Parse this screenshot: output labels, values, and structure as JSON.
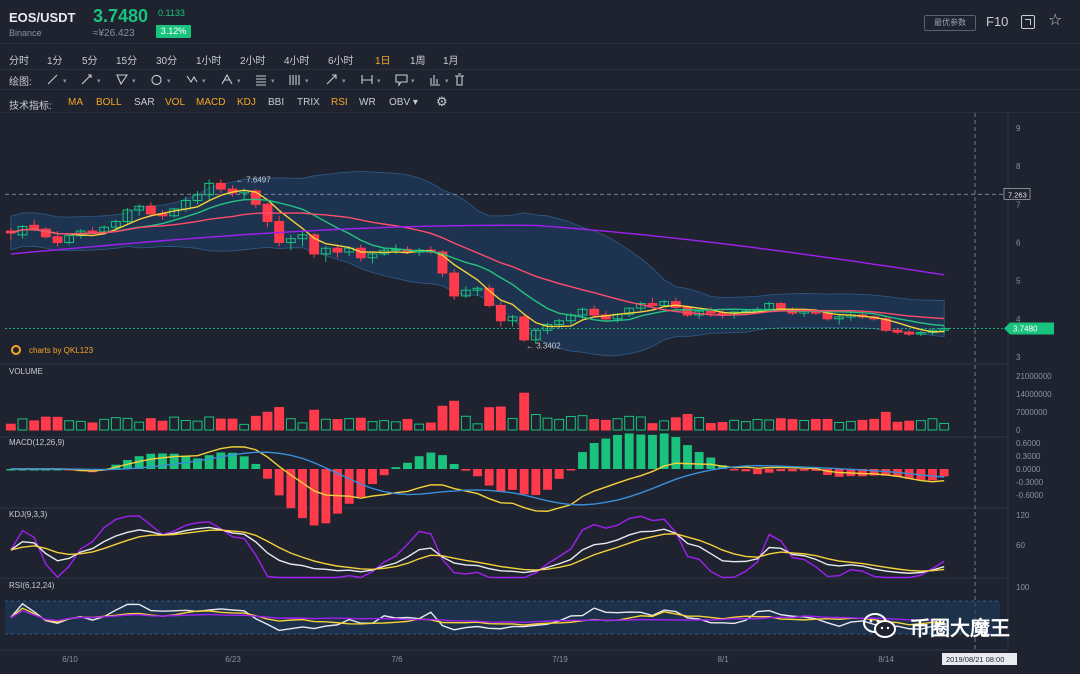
{
  "header": {
    "symbol": "EOS/USDT",
    "exchange": "Binance",
    "price": "3.7480",
    "cny_price": "≈¥26.423",
    "change": "0.1133",
    "change_pct": "3.12%",
    "preferences_label": "最优参数",
    "f10_label": "F10",
    "fullscreen_icon": "fullscreen-icon",
    "star_icon": "star-icon"
  },
  "timeframes": [
    {
      "label": "分时",
      "active": false
    },
    {
      "label": "1分",
      "active": false
    },
    {
      "label": "5分",
      "active": false
    },
    {
      "label": "15分",
      "active": false
    },
    {
      "label": "30分",
      "active": false
    },
    {
      "label": "1小时",
      "active": false
    },
    {
      "label": "2小时",
      "active": false
    },
    {
      "label": "4小时",
      "active": false
    },
    {
      "label": "6小时",
      "active": false
    },
    {
      "label": "1日",
      "active": true
    },
    {
      "label": "1周",
      "active": false
    },
    {
      "label": "1月",
      "active": false
    }
  ],
  "drawing": {
    "label": "绘图:",
    "tools": [
      "line-tool-icon",
      "ray-tool-icon",
      "triangle-tool-icon",
      "circle-tool-icon",
      "wave-tool-icon",
      "pattern-tool-icon",
      "horizontal-lines-icon",
      "vertical-lines-icon",
      "arrow-tool-icon",
      "measure-tool-icon",
      "comment-tool-icon",
      "bar-chart-icon",
      "trash-icon"
    ]
  },
  "indicators": {
    "label": "技术指标:",
    "items": [
      {
        "label": "MA",
        "color": "#f5a623"
      },
      {
        "label": "BOLL",
        "color": "#f5a623"
      },
      {
        "label": "SAR",
        "color": "#c8ccd6"
      },
      {
        "label": "VOL",
        "color": "#f5a623"
      },
      {
        "label": "MACD",
        "color": "#f5a623"
      },
      {
        "label": "KDJ",
        "color": "#f5a623"
      },
      {
        "label": "BBI",
        "color": "#c8ccd6"
      },
      {
        "label": "TRIX",
        "color": "#c8ccd6"
      },
      {
        "label": "RSI",
        "color": "#f5a623"
      },
      {
        "label": "WR",
        "color": "#c8ccd6"
      },
      {
        "label": "OBV",
        "color": "#c8ccd6"
      }
    ],
    "settings_icon": "gear-icon"
  },
  "chart_data": {
    "type": "candlestick",
    "price_axis": {
      "ticks": [
        "9",
        "8",
        "7",
        "6",
        "5",
        "4",
        "3"
      ],
      "range": [
        3,
        9
      ]
    },
    "current_price_label": "3.7480",
    "crosshair_price_label": "7.263",
    "high_annotation": "7.6497",
    "low_annotation": "3.3402",
    "branding": "charts by QKL123",
    "x_ticks": [
      "6/10",
      "6/23",
      "7/6",
      "7/19",
      "8/1",
      "8/14"
    ],
    "crosshair_date": "2019/08/21 08:00",
    "candles": [
      [
        6.3,
        6.38,
        6.05,
        6.25
      ],
      [
        6.2,
        6.45,
        6.1,
        6.42
      ],
      [
        6.45,
        6.6,
        6.3,
        6.35
      ],
      [
        6.35,
        6.4,
        6.1,
        6.15
      ],
      [
        6.15,
        6.3,
        5.9,
        6.0
      ],
      [
        6.0,
        6.2,
        5.95,
        6.18
      ],
      [
        6.18,
        6.35,
        6.1,
        6.3
      ],
      [
        6.3,
        6.4,
        6.2,
        6.28
      ],
      [
        6.28,
        6.45,
        6.2,
        6.4
      ],
      [
        6.4,
        6.6,
        6.35,
        6.55
      ],
      [
        6.55,
        6.9,
        6.5,
        6.85
      ],
      [
        6.85,
        7.0,
        6.7,
        6.95
      ],
      [
        6.95,
        7.05,
        6.7,
        6.75
      ],
      [
        6.75,
        6.85,
        6.6,
        6.7
      ],
      [
        6.7,
        6.9,
        6.65,
        6.88
      ],
      [
        6.88,
        7.2,
        6.8,
        7.1
      ],
      [
        7.1,
        7.35,
        7.0,
        7.25
      ],
      [
        7.25,
        7.65,
        7.1,
        7.55
      ],
      [
        7.55,
        7.65,
        7.3,
        7.4
      ],
      [
        7.4,
        7.5,
        7.2,
        7.3
      ],
      [
        7.3,
        7.4,
        7.1,
        7.35
      ],
      [
        7.35,
        7.4,
        6.9,
        7.0
      ],
      [
        7.0,
        7.05,
        6.4,
        6.55
      ],
      [
        6.55,
        6.7,
        5.9,
        6.0
      ],
      [
        6.0,
        6.2,
        5.8,
        6.1
      ],
      [
        6.1,
        6.3,
        5.9,
        6.2
      ],
      [
        6.2,
        6.25,
        5.6,
        5.7
      ],
      [
        5.7,
        5.9,
        5.5,
        5.85
      ],
      [
        5.85,
        5.95,
        5.6,
        5.75
      ],
      [
        5.75,
        5.9,
        5.65,
        5.85
      ],
      [
        5.85,
        5.95,
        5.5,
        5.6
      ],
      [
        5.6,
        5.75,
        5.45,
        5.7
      ],
      [
        5.7,
        5.85,
        5.65,
        5.8
      ],
      [
        5.8,
        5.95,
        5.7,
        5.82
      ],
      [
        5.82,
        5.9,
        5.7,
        5.75
      ],
      [
        5.75,
        5.85,
        5.65,
        5.8
      ],
      [
        5.8,
        5.9,
        5.7,
        5.75
      ],
      [
        5.75,
        5.8,
        5.1,
        5.2
      ],
      [
        5.2,
        5.3,
        4.5,
        4.6
      ],
      [
        4.6,
        4.85,
        4.55,
        4.75
      ],
      [
        4.75,
        4.85,
        4.6,
        4.8
      ],
      [
        4.8,
        4.9,
        4.3,
        4.35
      ],
      [
        4.35,
        4.45,
        3.8,
        3.95
      ],
      [
        3.95,
        4.1,
        3.8,
        4.05
      ],
      [
        4.05,
        4.15,
        3.4,
        3.45
      ],
      [
        3.45,
        3.75,
        3.34,
        3.7
      ],
      [
        3.7,
        3.9,
        3.6,
        3.85
      ],
      [
        3.85,
        4.0,
        3.75,
        3.95
      ],
      [
        3.95,
        4.15,
        3.85,
        4.1
      ],
      [
        4.1,
        4.3,
        4.0,
        4.25
      ],
      [
        4.25,
        4.35,
        4.05,
        4.1
      ],
      [
        4.1,
        4.2,
        3.95,
        4.0
      ],
      [
        4.0,
        4.15,
        3.9,
        4.12
      ],
      [
        4.12,
        4.3,
        4.05,
        4.28
      ],
      [
        4.28,
        4.45,
        4.2,
        4.4
      ],
      [
        4.4,
        4.55,
        4.3,
        4.35
      ],
      [
        4.35,
        4.5,
        4.3,
        4.45
      ],
      [
        4.45,
        4.55,
        4.25,
        4.3
      ],
      [
        4.3,
        4.35,
        4.05,
        4.1
      ],
      [
        4.1,
        4.25,
        4.0,
        4.2
      ],
      [
        4.2,
        4.3,
        4.05,
        4.15
      ],
      [
        4.15,
        4.25,
        4.0,
        4.1
      ],
      [
        4.1,
        4.2,
        4.0,
        4.18
      ],
      [
        4.18,
        4.25,
        4.1,
        4.2
      ],
      [
        4.2,
        4.3,
        4.15,
        4.25
      ],
      [
        4.25,
        4.45,
        4.2,
        4.4
      ],
      [
        4.4,
        4.45,
        4.2,
        4.25
      ],
      [
        4.25,
        4.3,
        4.1,
        4.15
      ],
      [
        4.15,
        4.25,
        4.05,
        4.2
      ],
      [
        4.2,
        4.25,
        4.1,
        4.15
      ],
      [
        4.15,
        4.2,
        3.95,
        4.0
      ],
      [
        4.0,
        4.1,
        3.85,
        4.05
      ],
      [
        4.05,
        4.15,
        3.95,
        4.1
      ],
      [
        4.1,
        4.2,
        4.0,
        4.05
      ],
      [
        4.05,
        4.1,
        3.95,
        4.0
      ],
      [
        4.0,
        4.05,
        3.65,
        3.7
      ],
      [
        3.7,
        3.75,
        3.6,
        3.65
      ],
      [
        3.65,
        3.7,
        3.55,
        3.6
      ],
      [
        3.6,
        3.68,
        3.55,
        3.64
      ],
      [
        3.64,
        3.75,
        3.58,
        3.7
      ],
      [
        3.7,
        3.8,
        3.62,
        3.748
      ]
    ],
    "ma_lines": [
      {
        "name": "MA-yellow",
        "color": "#f5d13a"
      },
      {
        "name": "MA-green",
        "color": "#26c281"
      },
      {
        "name": "MA-red",
        "color": "#ff4d6a"
      },
      {
        "name": "MA-purple",
        "color": "#a020f0"
      }
    ],
    "volume": {
      "label": "VOLUME",
      "axis_ticks": [
        "21000000",
        "14000000",
        "7000000",
        "0"
      ],
      "range": [
        0,
        21000000
      ]
    },
    "macd": {
      "label": "MACD(12,26,9)",
      "axis_ticks": [
        "0.6000",
        "0.3000",
        "0.0000",
        "-0.3000",
        "-0.6000"
      ],
      "range": [
        -0.6,
        0.6
      ]
    },
    "kdj": {
      "label": "KDJ(9,3,3)",
      "axis_ticks": [
        "120",
        "60"
      ],
      "range": [
        0,
        120
      ]
    },
    "rsi": {
      "label": "RSI(6,12,24)",
      "axis_ticks": [
        "100"
      ],
      "range": [
        0,
        100
      ]
    },
    "colors": {
      "up": "#19c37d",
      "down": "#ff3a4a",
      "boll_fill": "#1c3a5c"
    }
  },
  "watermark": {
    "text": "币圈大魔王"
  }
}
